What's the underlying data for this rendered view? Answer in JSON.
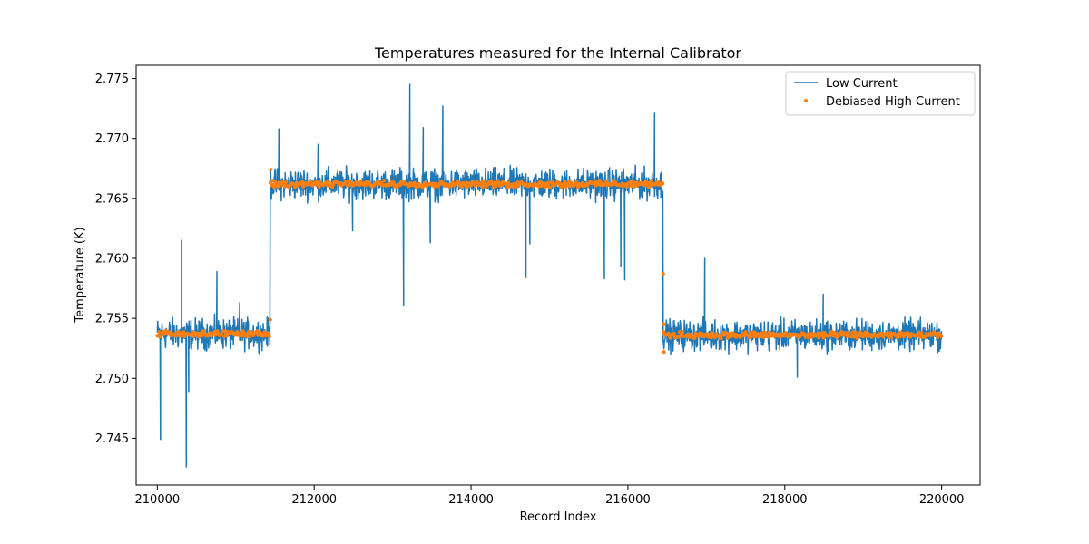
{
  "chart_data": {
    "type": "line",
    "title": "Temperatures measured for the Internal Calibrator",
    "xlabel": "Record Index",
    "ylabel": "Temperature (K)",
    "xlim": [
      209730,
      220490
    ],
    "ylim": [
      2.7411,
      2.7761
    ],
    "xticks": [
      210000,
      212000,
      214000,
      216000,
      218000,
      220000
    ],
    "xtick_labels": [
      "210000",
      "212000",
      "214000",
      "216000",
      "218000",
      "220000"
    ],
    "yticks": [
      2.745,
      2.75,
      2.755,
      2.76,
      2.765,
      2.77,
      2.775
    ],
    "ytick_labels": [
      "2.745",
      "2.750",
      "2.755",
      "2.760",
      "2.765",
      "2.770",
      "2.775"
    ],
    "legend_position": "top-right",
    "grid": false,
    "segments": [
      {
        "x_start": 210000,
        "x_end": 211440,
        "level": 2.7537
      },
      {
        "x_start": 211440,
        "x_end": 216450,
        "level": 2.7662
      },
      {
        "x_start": 216450,
        "x_end": 220000,
        "level": 2.7536
      }
    ],
    "series": [
      {
        "name": "Low Current",
        "style": "line",
        "color": "#1f77b4",
        "noise_band": 0.0013,
        "spikes": [
          {
            "x": 210040,
            "y": 2.7449
          },
          {
            "x": 210310,
            "y": 2.7615
          },
          {
            "x": 210370,
            "y": 2.7426
          },
          {
            "x": 210400,
            "y": 2.7489
          },
          {
            "x": 210760,
            "y": 2.7589
          },
          {
            "x": 211050,
            "y": 2.7563
          },
          {
            "x": 211440,
            "y": 2.7672
          },
          {
            "x": 211550,
            "y": 2.7708
          },
          {
            "x": 212050,
            "y": 2.7695
          },
          {
            "x": 212490,
            "y": 2.7623
          },
          {
            "x": 213140,
            "y": 2.7561
          },
          {
            "x": 213220,
            "y": 2.7745
          },
          {
            "x": 213390,
            "y": 2.7709
          },
          {
            "x": 213480,
            "y": 2.7613
          },
          {
            "x": 213640,
            "y": 2.7727
          },
          {
            "x": 214700,
            "y": 2.7584
          },
          {
            "x": 214750,
            "y": 2.7612
          },
          {
            "x": 215700,
            "y": 2.7583
          },
          {
            "x": 215910,
            "y": 2.7593
          },
          {
            "x": 215960,
            "y": 2.7582
          },
          {
            "x": 216340,
            "y": 2.7721
          },
          {
            "x": 216980,
            "y": 2.76
          },
          {
            "x": 218160,
            "y": 2.7501
          },
          {
            "x": 218490,
            "y": 2.757
          }
        ]
      },
      {
        "name": "Debiased High Current",
        "style": "scatter",
        "color": "#ff7f0e",
        "noise_band": 0.0003,
        "outliers": [
          {
            "x": 211440,
            "y": 2.7549
          },
          {
            "x": 211445,
            "y": 2.7674
          },
          {
            "x": 216450,
            "y": 2.7587
          },
          {
            "x": 216455,
            "y": 2.7545
          },
          {
            "x": 216460,
            "y": 2.7522
          }
        ]
      }
    ]
  }
}
